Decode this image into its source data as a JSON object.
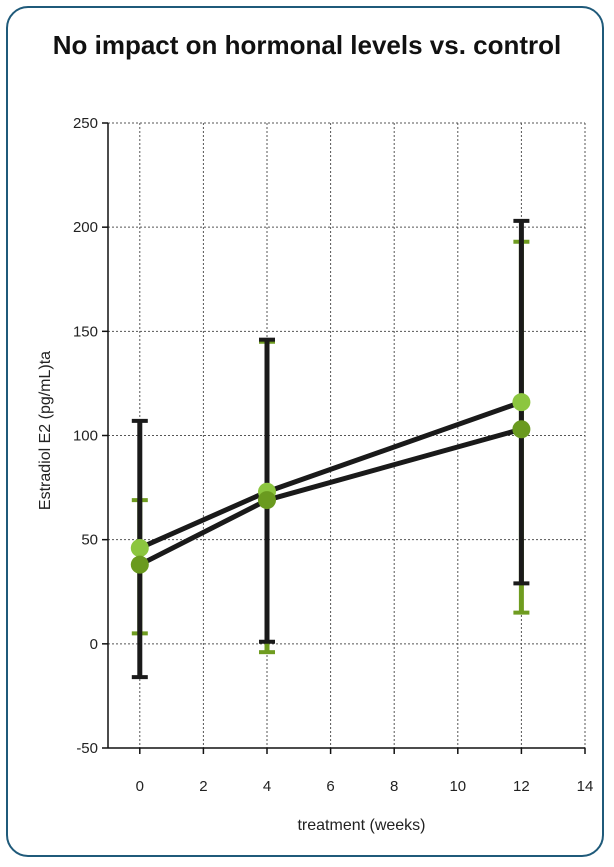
{
  "chart_data": {
    "type": "line",
    "title": "No impact on hormonal levels vs. control",
    "xlabel": "treatment (weeks)",
    "ylabel": "Estradiol E2 (pg/mL)ta",
    "xlim": [
      -1,
      14
    ],
    "ylim": [
      -50,
      250
    ],
    "x_ticks": [
      0,
      2,
      4,
      6,
      8,
      10,
      12,
      14
    ],
    "y_ticks": [
      -50,
      0,
      50,
      100,
      150,
      200,
      250
    ],
    "grid": true,
    "series": [
      {
        "points": [
          {
            "x": 0,
            "y": 46,
            "err_low": 5,
            "err_high": 69
          },
          {
            "x": 4,
            "y": 73,
            "err_low": -4,
            "err_high": 145
          },
          {
            "x": 12,
            "y": 116,
            "err_low": 15,
            "err_high": 193
          }
        ]
      },
      {
        "points": [
          {
            "x": 0,
            "y": 38,
            "err_low": -16,
            "err_high": 107
          },
          {
            "x": 4,
            "y": 69,
            "err_low": 1,
            "err_high": 146
          },
          {
            "x": 12,
            "y": 103,
            "err_low": 29,
            "err_high": 203
          }
        ]
      }
    ],
    "colors": {
      "line": "#1a1a1a",
      "series_0_marker": "#8cc63f",
      "series_1_marker": "#6a9a1f",
      "series_0_errorbar": "#6f9c20",
      "series_1_errorbar": "#1a1a1a",
      "frame": "#1f5a7a"
    }
  }
}
